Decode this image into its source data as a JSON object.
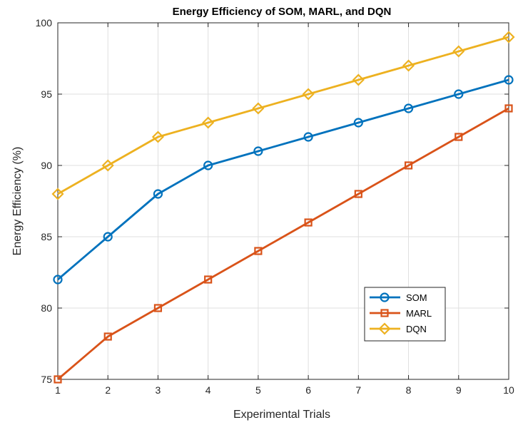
{
  "chart_data": {
    "type": "line",
    "title": "Energy Efficiency of SOM, MARL, and DQN",
    "xlabel": "Experimental Trials",
    "ylabel": "Energy Efficiency (%)",
    "x": [
      1,
      2,
      3,
      4,
      5,
      6,
      7,
      8,
      9,
      10
    ],
    "xlim": [
      1,
      10
    ],
    "ylim": [
      75,
      100
    ],
    "xticks": [
      1,
      2,
      3,
      4,
      5,
      6,
      7,
      8,
      9,
      10
    ],
    "yticks": [
      75,
      80,
      85,
      90,
      95,
      100
    ],
    "grid": true,
    "legend_position": "bottom-right",
    "series": [
      {
        "name": "SOM",
        "color": "#0072BD",
        "marker": "circle",
        "values": [
          82,
          85,
          88,
          90,
          91,
          92,
          93,
          94,
          95,
          96
        ]
      },
      {
        "name": "MARL",
        "color": "#D95319",
        "marker": "square",
        "values": [
          75,
          78,
          80,
          82,
          84,
          86,
          88,
          90,
          92,
          94
        ]
      },
      {
        "name": "DQN",
        "color": "#EDB120",
        "marker": "diamond",
        "values": [
          88,
          90,
          92,
          93,
          94,
          95,
          96,
          97,
          98,
          99
        ]
      }
    ]
  }
}
